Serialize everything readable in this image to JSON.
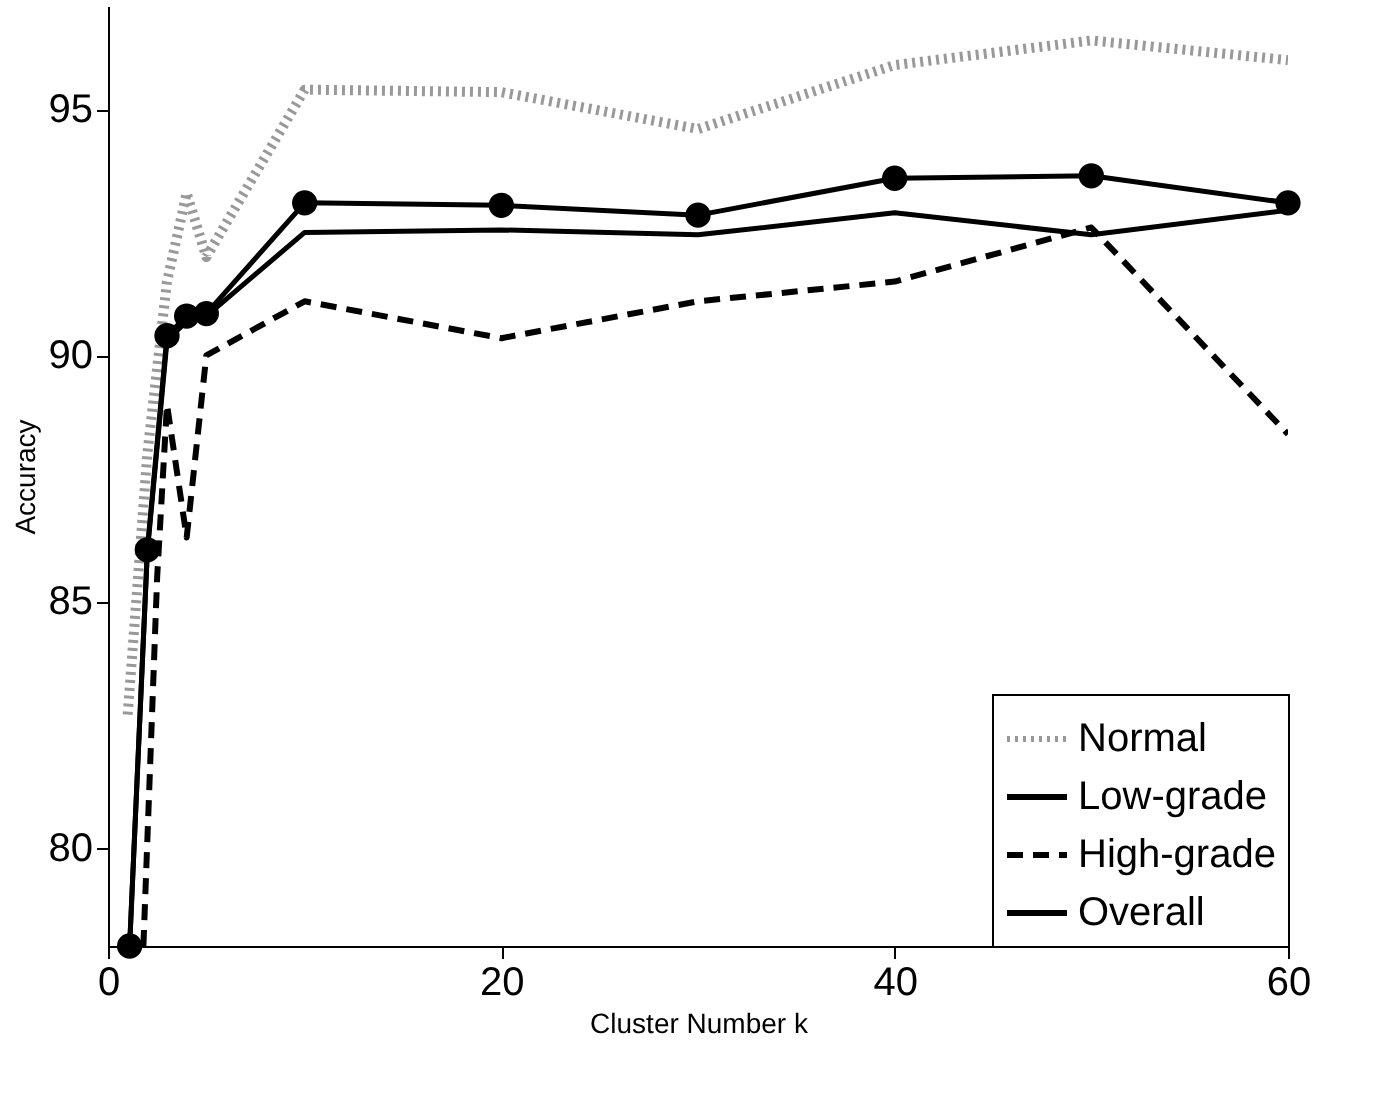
{
  "chart_data": {
    "type": "line",
    "xlabel": "Cluster Number k",
    "ylabel": "Accuracy",
    "xlim": [
      0,
      60
    ],
    "xticks": [
      0,
      20,
      40,
      60
    ],
    "ylim": [
      78,
      97.1
    ],
    "yticks": [
      80,
      85,
      90,
      95
    ],
    "grid": false,
    "legend": "bottom right",
    "series": [
      {
        "name": "Normal",
        "color": "#999999",
        "line_style": "dotted",
        "marker": "none",
        "x": [
          1,
          2,
          3,
          4,
          5,
          10,
          20,
          30,
          40,
          50,
          60
        ],
        "values": [
          82.7,
          88,
          91.5,
          93.3,
          92.0,
          95.4,
          95.35,
          94.6,
          95.9,
          96.4,
          96.0
        ]
      },
      {
        "name": "Low-grade",
        "color": "#000000",
        "line_style": "solid",
        "marker": "none",
        "x": [
          1.1,
          2,
          3,
          4,
          5,
          10,
          20,
          30,
          40,
          50,
          60
        ],
        "values": [
          78,
          86.0,
          90.3,
          90.7,
          90.8,
          92.5,
          92.55,
          92.45,
          92.9,
          92.45,
          92.95
        ]
      },
      {
        "name": "High-grade",
        "color": "#000000",
        "line_style": "dashed",
        "marker": "none",
        "x": [
          1.8,
          2.5,
          3,
          4,
          5,
          10,
          20,
          30,
          40,
          50,
          60
        ],
        "values": [
          78,
          85.5,
          89.0,
          86.3,
          90.0,
          91.1,
          90.35,
          91.1,
          91.5,
          92.6,
          88.4
        ]
      },
      {
        "name": "Overall",
        "color": "#000000",
        "line_style": "solid",
        "marker": "circle",
        "x": [
          1.1,
          2,
          3,
          4,
          5,
          10,
          20,
          30,
          40,
          50,
          60
        ],
        "values": [
          78,
          86.05,
          90.4,
          90.8,
          90.85,
          93.1,
          93.05,
          92.85,
          93.6,
          93.65,
          93.1
        ]
      }
    ]
  }
}
